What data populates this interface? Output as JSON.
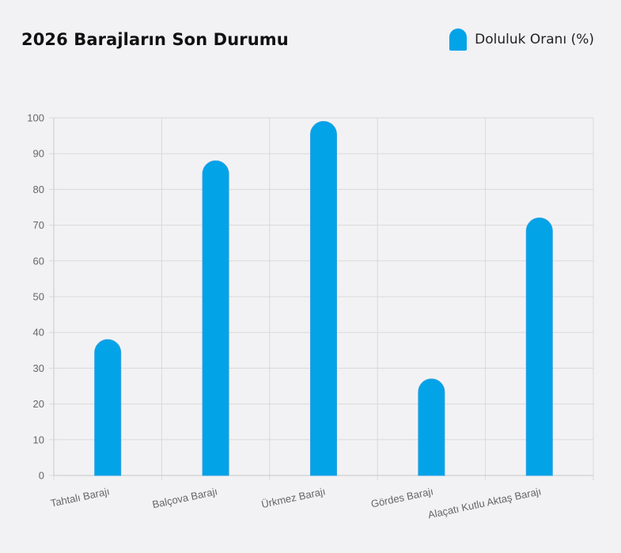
{
  "chart_data": {
    "type": "bar",
    "title": "2026 Barajların Son Durumu",
    "categories": [
      "Tahtalı Barajı",
      "Balçova Barajı",
      "Ürkmez Barajı",
      "Gördes Barajı",
      "Alaçatı Kutlu Aktaş Barajı"
    ],
    "series": [
      {
        "name": "Doluluk Oranı (%)",
        "values": [
          38,
          88,
          99,
          27,
          72
        ],
        "color": "#03a3e8"
      }
    ],
    "ylim": [
      0,
      100
    ],
    "yticks": [
      0,
      10,
      20,
      30,
      40,
      50,
      60,
      70,
      80,
      90,
      100
    ],
    "grid": true,
    "legend_position": "top-right"
  }
}
